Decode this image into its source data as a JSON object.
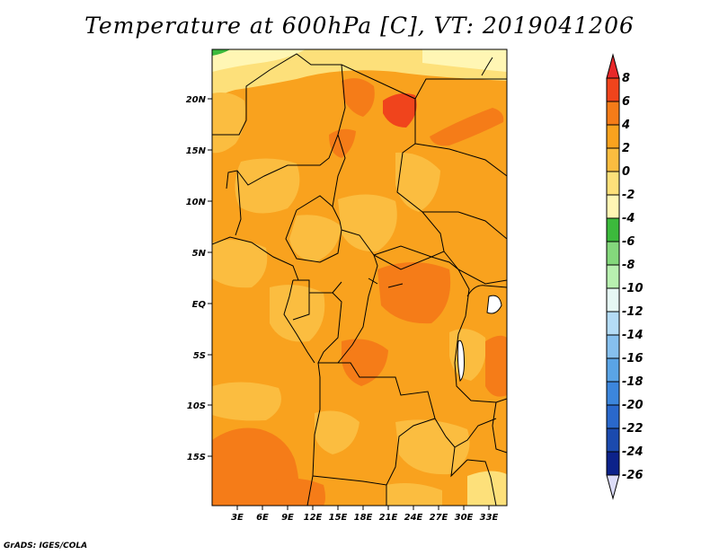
{
  "title": "Temperature at 600hPa [C], VT: 2019041206",
  "credit": "GrADS: IGES/COLA",
  "map": {
    "lat_labels": [
      "20N",
      "15N",
      "10N",
      "5N",
      "EQ",
      "5S",
      "10S",
      "15S"
    ],
    "lon_labels": [
      "3E",
      "6E",
      "9E",
      "12E",
      "15E",
      "18E",
      "21E",
      "24E",
      "27E",
      "30E",
      "33E"
    ]
  },
  "colorbar": {
    "labels": [
      "8",
      "6",
      "4",
      "2",
      "0",
      "-2",
      "-4",
      "-6",
      "-8",
      "-10",
      "-12",
      "-14",
      "-16",
      "-18",
      "-20",
      "-22",
      "-24",
      "-26"
    ],
    "colors": {
      "above_8": "#e8282a",
      "6_8": "#f0441c",
      "4_6": "#f57c18",
      "2_4": "#f9a21e",
      "0_2": "#fbbd40",
      "m2_0": "#fde07a",
      "m4_m2": "#fff6b4",
      "m6_m4": "#3cba3c",
      "m8_m6": "#84d87c",
      "m10_m8": "#b8f0b0",
      "m12_m10": "#e6f8f4",
      "m14_m12": "#b4dcf6",
      "m16_m14": "#86c0ee",
      "m18_m16": "#5aa4e6",
      "m20_m18": "#3c86dc",
      "m22_m20": "#2a68cc",
      "m24_m22": "#1b4aae",
      "m26_m24": "#0c228a",
      "below_m26": "#dcdcf8"
    }
  }
}
